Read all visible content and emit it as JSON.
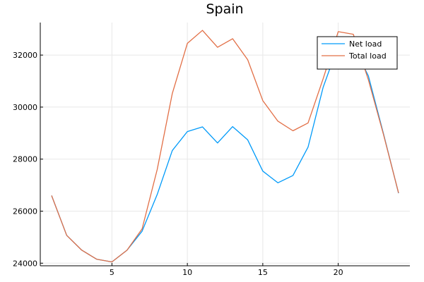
{
  "chart_data": {
    "type": "line",
    "title": "Spain",
    "xlabel": "",
    "ylabel": "",
    "xlim": [
      0.25,
      24.75
    ],
    "ylim": [
      23900,
      33250
    ],
    "xticks": [
      5,
      10,
      15,
      20
    ],
    "yticks": [
      24000,
      26000,
      28000,
      30000,
      32000
    ],
    "grid": true,
    "legend_position": "top-right",
    "x": [
      1,
      2,
      3,
      4,
      5,
      6,
      7,
      8,
      9,
      10,
      11,
      12,
      13,
      14,
      15,
      16,
      17,
      18,
      19,
      20,
      21,
      22,
      23,
      24
    ],
    "series": [
      {
        "name": "Net load",
        "color": "#009af9",
        "values": [
          26600,
          25070,
          24500,
          24150,
          24050,
          24500,
          25230,
          26640,
          28330,
          29060,
          29240,
          28620,
          29250,
          28740,
          27540,
          27090,
          27370,
          28460,
          30760,
          32370,
          32360,
          31200,
          28980,
          26690
        ]
      },
      {
        "name": "Total load",
        "color": "#e26f46",
        "values": [
          26600,
          25070,
          24500,
          24150,
          24050,
          24500,
          25320,
          27600,
          30520,
          32450,
          32950,
          32300,
          32630,
          31820,
          30250,
          29460,
          29090,
          29390,
          31090,
          32900,
          32800,
          31050,
          28950,
          26700
        ]
      }
    ]
  }
}
